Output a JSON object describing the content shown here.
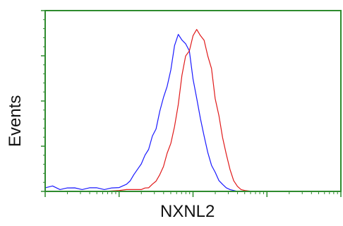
{
  "chart_data": {
    "type": "line",
    "title": "",
    "xlabel": "NXNL2",
    "ylabel": "Events",
    "xscale": "log",
    "xlim": [
      0,
      4
    ],
    "ylim": [
      0,
      100
    ],
    "grid": false,
    "legend": "none",
    "tick_labels_shown": false,
    "frame_color": "#2e8b2e",
    "series": [
      {
        "color": "#1a1aff",
        "x": [
          0.0,
          0.1,
          0.2,
          0.3,
          0.4,
          0.5,
          0.6,
          0.7,
          0.8,
          0.9,
          1.0,
          1.05,
          1.1,
          1.15,
          1.2,
          1.25,
          1.3,
          1.35,
          1.4,
          1.45,
          1.5,
          1.55,
          1.6,
          1.65,
          1.7,
          1.75,
          1.8,
          1.85,
          1.9,
          1.95,
          2.0,
          2.05,
          2.1,
          2.15,
          2.2,
          2.25,
          2.3,
          2.35,
          2.4,
          2.45,
          2.5,
          2.55,
          2.6,
          2.7,
          2.8,
          3.0,
          3.5,
          4.0
        ],
        "y": [
          2,
          3,
          1,
          2,
          2,
          1,
          2,
          2,
          1,
          2,
          2,
          3,
          4,
          6,
          9,
          12,
          16,
          20,
          24,
          30,
          36,
          44,
          52,
          60,
          70,
          78,
          84,
          86,
          82,
          75,
          64,
          52,
          40,
          30,
          22,
          15,
          10,
          6,
          4,
          2,
          1,
          0.5,
          0,
          0,
          0,
          0,
          0,
          0
        ]
      },
      {
        "color": "#e01a1a",
        "x": [
          0.0,
          0.5,
          0.8,
          1.0,
          1.1,
          1.2,
          1.3,
          1.35,
          1.4,
          1.45,
          1.5,
          1.55,
          1.6,
          1.65,
          1.7,
          1.75,
          1.8,
          1.85,
          1.9,
          1.95,
          2.0,
          2.05,
          2.1,
          2.15,
          2.2,
          2.25,
          2.3,
          2.35,
          2.4,
          2.45,
          2.5,
          2.55,
          2.6,
          2.65,
          2.7,
          2.8,
          3.0,
          3.5,
          4.0
        ],
        "y": [
          0,
          0,
          0,
          0.5,
          1,
          1,
          1,
          2,
          2,
          4,
          6,
          9,
          14,
          20,
          28,
          38,
          50,
          62,
          72,
          80,
          86,
          89,
          88,
          84,
          76,
          66,
          54,
          42,
          30,
          20,
          12,
          6,
          3,
          1,
          0.5,
          0,
          0,
          0,
          0
        ]
      }
    ]
  }
}
